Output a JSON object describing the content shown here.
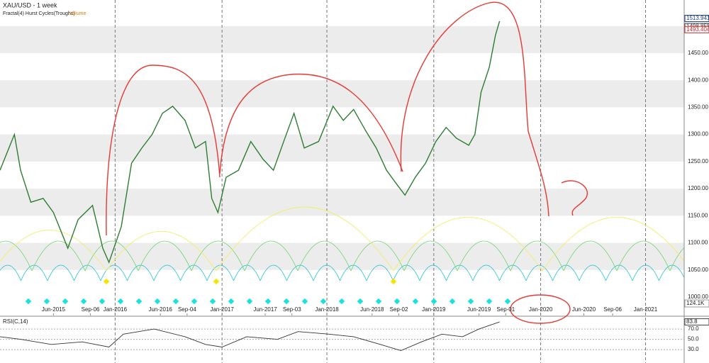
{
  "chart_data": {
    "type": "line",
    "title": "XAU/USD - 1 week",
    "subtitle": "Fractal(4) Hurst Cycles(Troughs)",
    "volume_label": "Volume",
    "volume_value_label": "124.1K",
    "x": [
      0,
      7,
      10,
      15,
      21,
      26,
      33,
      38,
      45,
      50,
      53,
      59,
      64,
      69,
      74,
      79,
      84,
      90,
      95,
      100,
      103,
      106,
      110,
      116,
      122,
      128,
      133,
      138,
      143,
      148,
      155,
      162,
      167,
      172,
      178,
      183,
      188,
      193,
      197,
      202,
      207,
      212,
      217,
      222,
      228,
      231,
      234,
      238,
      241,
      243
    ],
    "series": [
      {
        "name": "XAU/USD",
        "color": "#2e7d32",
        "values": [
          1234,
          1300,
          1234,
          1175,
          1182,
          1156,
          1090,
          1143,
          1169,
          1090,
          1064,
          1130,
          1247,
          1275,
          1300,
          1339,
          1352,
          1326,
          1275,
          1287,
          1182,
          1156,
          1221,
          1234,
          1287,
          1254,
          1234,
          1287,
          1339,
          1275,
          1287,
          1352,
          1326,
          1346,
          1306,
          1275,
          1234,
          1208,
          1188,
          1221,
          1247,
          1287,
          1313,
          1293,
          1280,
          1300,
          1378,
          1424,
          1483,
          1509
        ]
      }
    ],
    "xlim": [
      0,
      332.8
    ],
    "xticks": [
      {
        "value": 26,
        "label": "Jun-2015"
      },
      {
        "value": 44,
        "label": "Sep-06"
      },
      {
        "value": 56,
        "label": "Jan-2016"
      },
      {
        "value": 78,
        "label": "Jun-2016"
      },
      {
        "value": 91,
        "label": "Sep-04"
      },
      {
        "value": 108,
        "label": "Jan-2017"
      },
      {
        "value": 129,
        "label": "Jun-2017"
      },
      {
        "value": 142,
        "label": "Sep-03"
      },
      {
        "value": 159,
        "label": "Jan-2018"
      },
      {
        "value": 181,
        "label": "Jun-2018"
      },
      {
        "value": 194,
        "label": "Sep-02"
      },
      {
        "value": 211,
        "label": "Jan-2019"
      },
      {
        "value": 233,
        "label": "Jun-2019"
      },
      {
        "value": 246,
        "label": "Sep-01"
      },
      {
        "value": 263,
        "label": "Jan-2020"
      },
      {
        "value": 284,
        "label": "Jun-2020"
      },
      {
        "value": 298,
        "label": "Sep-06"
      },
      {
        "value": 314,
        "label": "Jan-2021"
      }
    ],
    "ylim": [
      966,
      1548
    ],
    "yticks": [
      {
        "value": 1000,
        "label": "1000.00"
      },
      {
        "value": 1050,
        "label": "1050.00"
      },
      {
        "value": 1100,
        "label": "1100.00"
      },
      {
        "value": 1150,
        "label": "1150.00"
      },
      {
        "value": 1200,
        "label": "1200.00"
      },
      {
        "value": 1250,
        "label": "1250.00"
      },
      {
        "value": 1300,
        "label": "1300.00"
      },
      {
        "value": 1350,
        "label": "1350.00"
      },
      {
        "value": 1400,
        "label": "1400.00"
      },
      {
        "value": 1450,
        "label": "1450.00"
      },
      {
        "value": 1500,
        "label": "1500.00"
      }
    ],
    "price_labels": [
      {
        "value": 1513.941,
        "color": "#1a3d8f"
      },
      {
        "value": 1498.858,
        "color": "#444444"
      },
      {
        "value": 1493.404,
        "color": "#c62828"
      }
    ],
    "rsi": {
      "title": "RSI(C,14)",
      "color": "#333333",
      "x": [
        0,
        10,
        25,
        40,
        53,
        60,
        75,
        90,
        100,
        108,
        120,
        135,
        145,
        160,
        172,
        185,
        195,
        205,
        215,
        225,
        233,
        243
      ],
      "values": [
        55,
        50,
        40,
        45,
        35,
        60,
        70,
        55,
        40,
        35,
        55,
        50,
        65,
        60,
        55,
        40,
        28,
        45,
        60,
        55,
        70,
        83.8
      ],
      "ylim": [
        4,
        93.5
      ],
      "yticks": [
        {
          "value": 30,
          "label": "30.0"
        },
        {
          "value": 50,
          "label": "50.0"
        },
        {
          "value": 70,
          "label": "70.0"
        }
      ],
      "current": 83.8
    }
  }
}
